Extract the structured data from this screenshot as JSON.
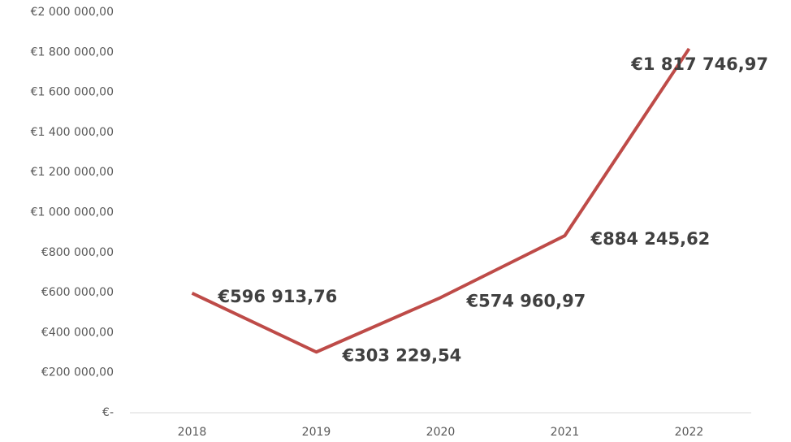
{
  "chart_data": {
    "type": "line",
    "categories": [
      "2018",
      "2019",
      "2020",
      "2021",
      "2022"
    ],
    "series": [
      {
        "name": null,
        "color": "#be4b48",
        "values": [
          596913.76,
          303229.54,
          574960.97,
          884245.62,
          1817746.97
        ],
        "value_labels": [
          "€596 913,76",
          "€303 229,54",
          "€574 960,97",
          "€884 245,62",
          "€1 817 746,97"
        ]
      }
    ],
    "ylim": [
      0,
      2000000
    ],
    "yticks": [
      {
        "value": 0,
        "label": "€-"
      },
      {
        "value": 200000,
        "label": "€200 000,00"
      },
      {
        "value": 400000,
        "label": "€400 000,00"
      },
      {
        "value": 600000,
        "label": "€600 000,00"
      },
      {
        "value": 800000,
        "label": "€800 000,00"
      },
      {
        "value": 1000000,
        "label": "€1 000 000,00"
      },
      {
        "value": 1200000,
        "label": "€1 200 000,00"
      },
      {
        "value": 1400000,
        "label": "€1 400 000,00"
      },
      {
        "value": 1600000,
        "label": "€1 600 000,00"
      },
      {
        "value": 1800000,
        "label": "€1 800 000,00"
      },
      {
        "value": 2000000,
        "label": "€2 000 000,00"
      }
    ],
    "grid": false
  }
}
